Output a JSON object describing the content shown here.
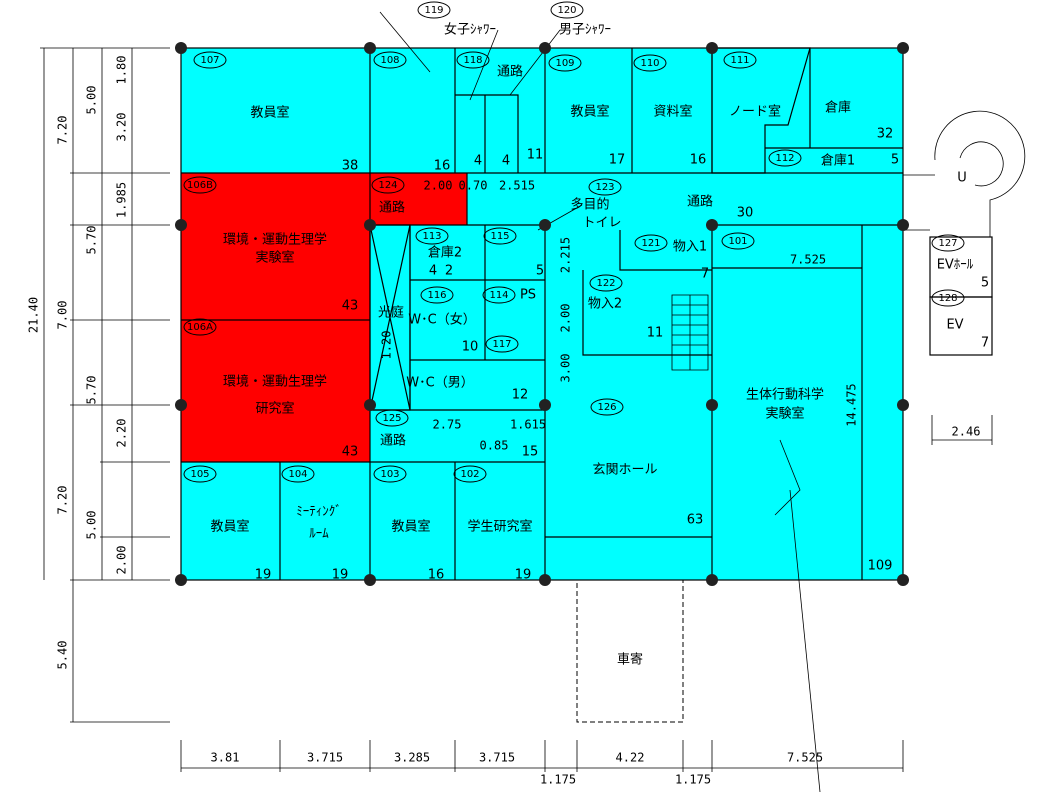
{
  "rooms": [
    {
      "no": "107",
      "name": [
        "教員室"
      ],
      "area": "38"
    },
    {
      "no": "108",
      "area": "16"
    },
    {
      "no": "118",
      "name": [
        "通路"
      ],
      "area": "11"
    },
    {
      "no": "119",
      "name": [
        "女子ｼｬﾜｰ"
      ],
      "area": "4"
    },
    {
      "no": "120",
      "name": [
        "男子ｼｬﾜｰ"
      ],
      "area": "4"
    },
    {
      "no": "109",
      "name": [
        "教員室"
      ],
      "area": "17"
    },
    {
      "no": "110",
      "name": [
        "資料室"
      ],
      "area": "16"
    },
    {
      "no": "111",
      "name": [
        "ノード室"
      ]
    },
    {
      "name": [
        "倉庫"
      ],
      "area": "32"
    },
    {
      "no": "112",
      "name": [
        "倉庫1"
      ],
      "area": "5"
    },
    {
      "no": "106B",
      "name": [
        "環境・運動生理学",
        "実験室"
      ],
      "area": "43"
    },
    {
      "no": "106A",
      "name": [
        "環境・運動生理学",
        "研究室"
      ],
      "area": "43"
    },
    {
      "no": "124",
      "name": [
        "通路"
      ]
    },
    {
      "no": "123",
      "name": [
        "通路"
      ],
      "area": "30"
    },
    {
      "no": "113",
      "name": [
        "倉庫2"
      ],
      "area": "4"
    },
    {
      "no": "115",
      "area": "5"
    },
    {
      "no": "116",
      "name": [
        "W･C（女）"
      ],
      "area": "10"
    },
    {
      "no": "114",
      "name": [
        "PS"
      ],
      "area": "2"
    },
    {
      "no": "117",
      "name": [
        "W･C（男）"
      ],
      "area": "12"
    },
    {
      "name": [
        "光庭"
      ]
    },
    {
      "no": "121",
      "name": [
        "物入1"
      ],
      "area": "7"
    },
    {
      "no": "122",
      "name": [
        "物入2"
      ],
      "area": "11"
    },
    {
      "no": "126",
      "name": [
        "玄関ホール"
      ],
      "area": "63"
    },
    {
      "no": "101",
      "name": [
        "生体行動科学",
        "実験室"
      ],
      "area": "109"
    },
    {
      "no": "125",
      "name": [
        "通路"
      ],
      "area": "15"
    },
    {
      "no": "105",
      "name": [
        "教員室"
      ],
      "area": "19"
    },
    {
      "no": "104",
      "name": [
        "ﾐｰﾃｨﾝｸﾞ",
        "ﾙｰﾑ"
      ],
      "area": "19"
    },
    {
      "no": "103",
      "name": [
        "教員室"
      ],
      "area": "16"
    },
    {
      "no": "102",
      "name": [
        "学生研究室"
      ],
      "area": "19"
    },
    {
      "no": "127",
      "name": [
        "EVﾎｰﾙ"
      ],
      "area": "5"
    },
    {
      "no": "128",
      "name": [
        "EV"
      ],
      "area": "7"
    },
    {
      "name": [
        "車寄"
      ]
    }
  ],
  "callouts": [
    [
      "多目的",
      "トイレ"
    ]
  ],
  "dimensions": [
    "7.20",
    "5.00",
    "1.80",
    "3.20",
    "1.985",
    "5.70",
    "21.40",
    "7.00",
    "5.70",
    "2.20",
    "7.20",
    "5.00",
    "2.00",
    "5.40",
    "3.81",
    "3.715",
    "3.285",
    "3.715",
    "1.175",
    "4.22",
    "1.175",
    "7.525",
    "2.00",
    "0.70",
    "2.515",
    "2.215",
    "2.00",
    "3.00",
    "1.20",
    "2.75",
    "1.615",
    "0.85",
    "7.525",
    "14.475",
    "2.46"
  ],
  "stair_mark": "U"
}
